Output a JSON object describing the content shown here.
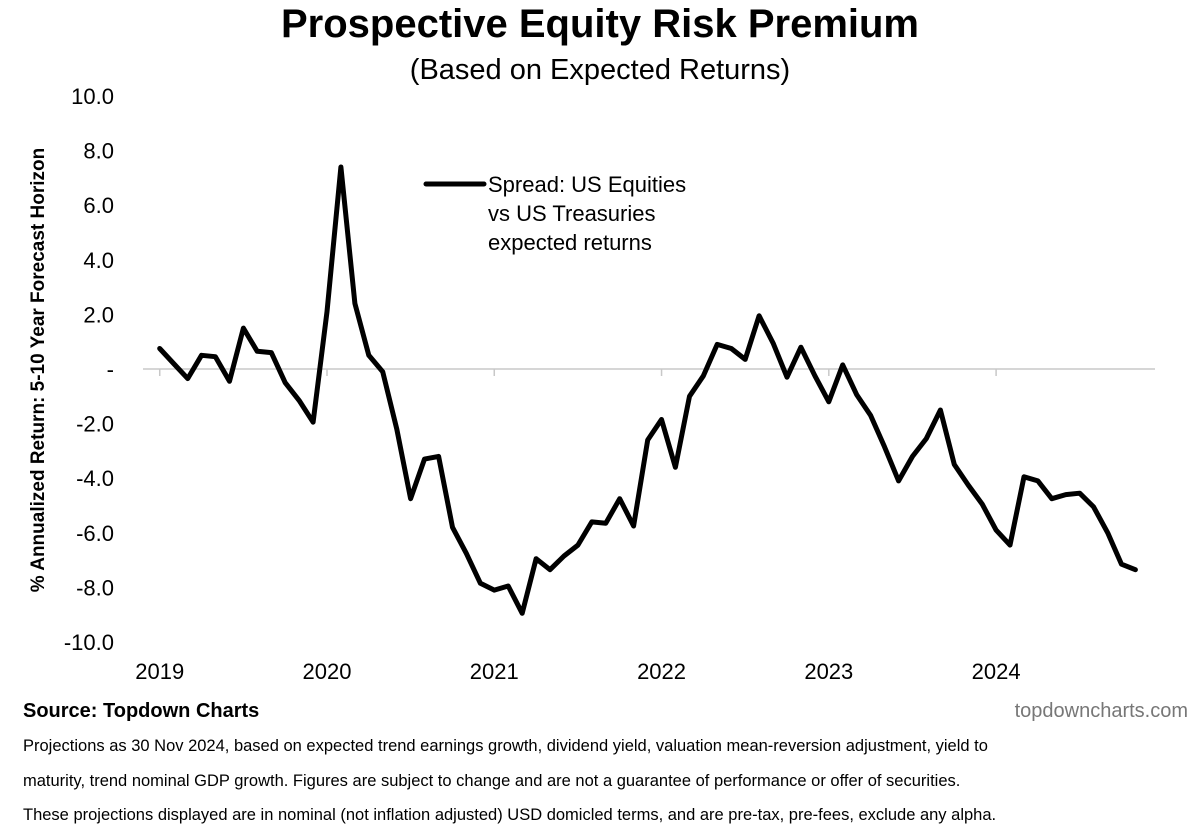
{
  "header": {
    "title": "Prospective Equity Risk Premium",
    "subtitle": "(Based on Expected Returns)"
  },
  "footer": {
    "source": "Source: Topdown Charts",
    "watermark": "topdowncharts.com",
    "notes": [
      "Projections as 30 Nov 2024, based on expected trend earnings growth, dividend yield, valuation mean-reversion adjustment, yield to",
      "maturity, trend nominal GDP growth.  Figures are subject to change and are not a guarantee of performance or offer of securities.",
      "These projections displayed are in nominal (not inflation adjusted) USD domicled terms, and are pre-tax, pre-fees, exclude any alpha."
    ]
  },
  "chart_data": {
    "type": "line",
    "title": "Prospective Equity Risk Premium",
    "subtitle": "(Based on Expected Returns)",
    "ylabel": "% Annualized Return: 5-10 Year Forecast Horizon",
    "xlabel": "",
    "ylim": [
      -10,
      10
    ],
    "xlim": [
      2018.9,
      2024.95
    ],
    "yticks": [
      10,
      8,
      6,
      4,
      2,
      0,
      -2,
      -4,
      -6,
      -8,
      -10
    ],
    "ytick_labels": [
      "10.0",
      "8.0",
      "6.0",
      "4.0",
      "2.0",
      "-",
      "-2.0",
      "-4.0",
      "-6.0",
      "-8.0",
      "-10.0"
    ],
    "xticks": [
      2019,
      2020,
      2021,
      2022,
      2023,
      2024
    ],
    "xtick_labels": [
      "2019",
      "2020",
      "2021",
      "2022",
      "2023",
      "2024"
    ],
    "grid": false,
    "legend": {
      "position": "top-center",
      "lines": [
        "Spread: US Equities",
        "vs US Treasuries",
        "expected returns"
      ]
    },
    "series": [
      {
        "name": "Spread: US Equities vs US Treasuries expected returns",
        "color": "#000000",
        "x": [
          2019.0,
          2019.083,
          2019.167,
          2019.25,
          2019.333,
          2019.417,
          2019.5,
          2019.583,
          2019.667,
          2019.75,
          2019.833,
          2019.917,
          2020.0,
          2020.083,
          2020.167,
          2020.25,
          2020.333,
          2020.417,
          2020.5,
          2020.583,
          2020.667,
          2020.75,
          2020.833,
          2020.917,
          2021.0,
          2021.083,
          2021.167,
          2021.25,
          2021.333,
          2021.417,
          2021.5,
          2021.583,
          2021.667,
          2021.75,
          2021.833,
          2021.917,
          2022.0,
          2022.083,
          2022.167,
          2022.25,
          2022.333,
          2022.417,
          2022.5,
          2022.583,
          2022.667,
          2022.75,
          2022.833,
          2022.917,
          2023.0,
          2023.083,
          2023.167,
          2023.25,
          2023.333,
          2023.417,
          2023.5,
          2023.583,
          2023.667,
          2023.75,
          2023.833,
          2023.917,
          2024.0,
          2024.083,
          2024.167,
          2024.25,
          2024.333,
          2024.417,
          2024.5,
          2024.583,
          2024.667,
          2024.75,
          2024.833
        ],
        "values": [
          0.75,
          0.2,
          -0.35,
          0.5,
          0.45,
          -0.45,
          1.5,
          0.65,
          0.6,
          -0.5,
          -1.15,
          -1.95,
          2.1,
          7.4,
          2.4,
          0.5,
          -0.1,
          -2.2,
          -4.75,
          -3.3,
          -3.2,
          -5.8,
          -6.75,
          -7.85,
          -8.1,
          -7.95,
          -8.95,
          -6.95,
          -7.35,
          -6.85,
          -6.45,
          -5.6,
          -5.65,
          -4.75,
          -5.75,
          -2.6,
          -1.85,
          -3.6,
          -1.0,
          -0.25,
          0.9,
          0.75,
          0.35,
          1.95,
          0.95,
          -0.3,
          0.8,
          -0.25,
          -1.2,
          0.15,
          -0.95,
          -1.7,
          -2.85,
          -4.1,
          -3.2,
          -2.55,
          -1.5,
          -3.5,
          -4.25,
          -4.95,
          -5.9,
          -6.45,
          -3.95,
          -4.1,
          -4.75,
          -4.6,
          -4.55,
          -5.05,
          -6.0,
          -7.15,
          -7.35
        ]
      }
    ]
  }
}
